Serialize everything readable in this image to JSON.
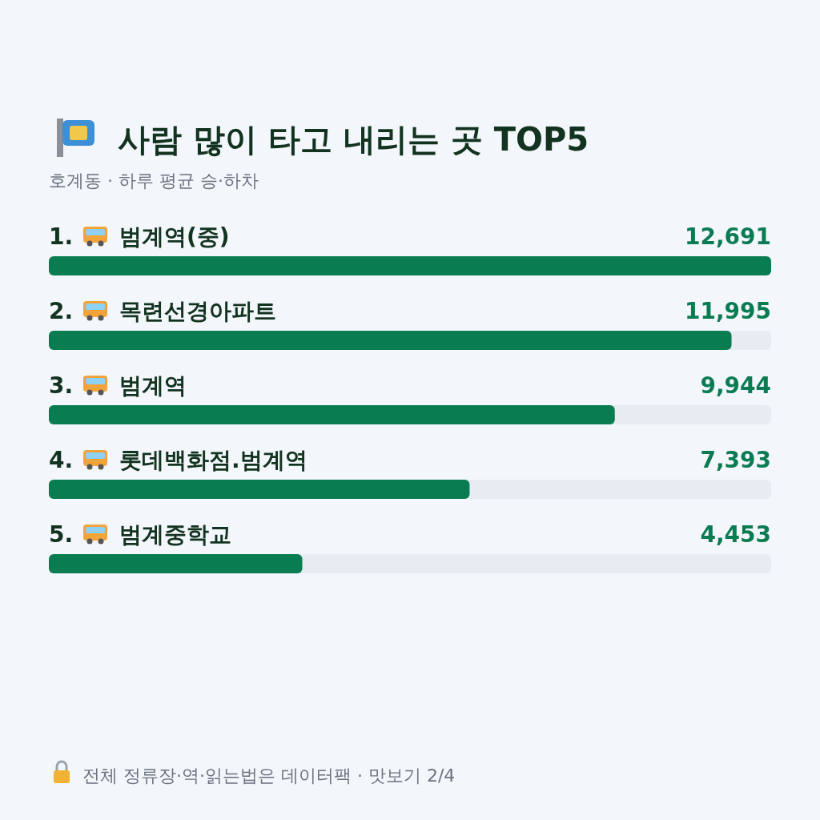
{
  "chart_data": {
    "type": "bar",
    "orientation": "horizontal",
    "title": "사람 많이 타고 내리는 곳 TOP5",
    "subtitle": "호계동 · 하루 평균 승·하차",
    "categories": [
      "1. 범계역(중)",
      "2. 목련선경아파트",
      "3. 범계역",
      "4. 롯데백화점.범계역",
      "5. 범계중학교"
    ],
    "values": [
      12691,
      11995,
      9944,
      7393,
      4453
    ],
    "value_labels": [
      "12,691",
      "11,995",
      "9,944",
      "7,393",
      "4,453"
    ],
    "color": "#0a7c52",
    "xlim": [
      0,
      12691
    ],
    "annotations": [
      "전체 정류장·역·읽는법은 데이터팩 · 맛보기 2/4"
    ]
  }
}
